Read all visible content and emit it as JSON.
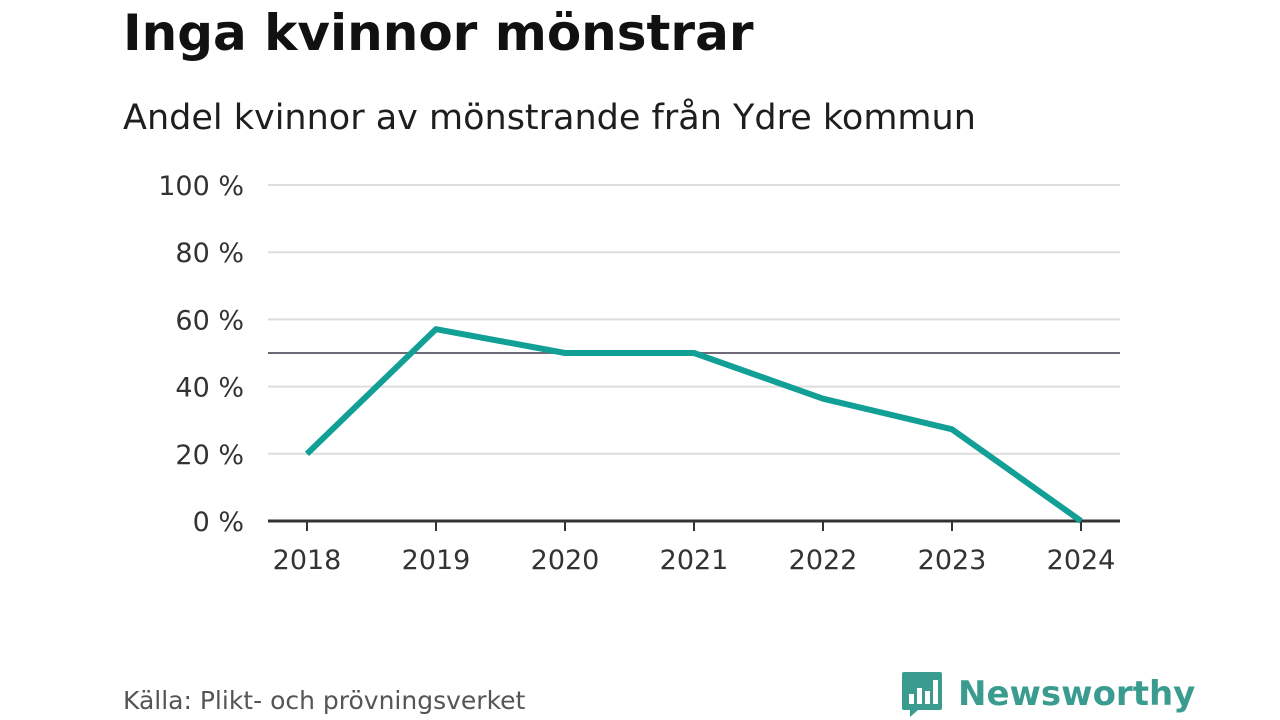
{
  "header": {
    "title": "Inga kvinnor mönstrar",
    "subtitle": "Andel kvinnor av mönstrande från Ydre kommun"
  },
  "footer": {
    "source": "Källa: Plikt- och prövningsverket",
    "brand": "Newsworthy",
    "brand_logo_icon": "bar-chart-speech-bubble-icon"
  },
  "colors": {
    "line": "#12a096",
    "reference_line": "#6d6a75",
    "grid": "#dddddd",
    "axis": "#333333",
    "brand": "#3a9b8f"
  },
  "chart_data": {
    "type": "line",
    "x": [
      "2018",
      "2019",
      "2020",
      "2021",
      "2022",
      "2023",
      "2024"
    ],
    "series": [
      {
        "values": [
          20,
          57.1,
          50,
          50,
          36.4,
          27.3,
          0
        ]
      }
    ],
    "reference_line": 50,
    "ylim": [
      0,
      100
    ],
    "yticks": [
      0,
      20,
      40,
      60,
      80,
      100
    ],
    "ytick_labels": [
      "0 %",
      "20 %",
      "40 %",
      "60 %",
      "80 %",
      "100 %"
    ],
    "grid": true,
    "xlabel": "",
    "ylabel": ""
  }
}
